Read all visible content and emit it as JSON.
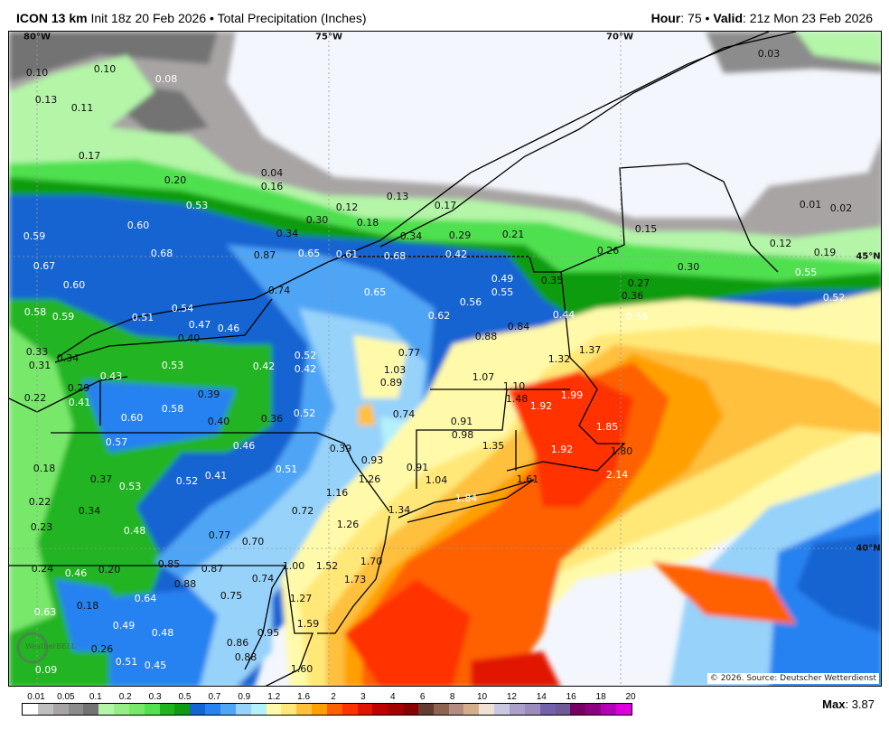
{
  "header": {
    "model": "ICON 13 km",
    "init": "Init 18z 20 Feb 2026",
    "separator": "•",
    "product": "Total Precipitation (Inches)",
    "hour_label": "Hour",
    "hour_value": ": 75",
    "valid_label": "Valid",
    "valid_value": ": 21z Mon 23 Feb 2026"
  },
  "map": {
    "coords": [
      "80°W",
      "75°W",
      "70°W",
      "45°N",
      "40°N"
    ],
    "copyright": "© 2026. Source: Deutscher Wetterdienst",
    "logo": "WeatherBELL",
    "labels": [
      {
        "v": "0.10",
        "t": "dark"
      },
      {
        "v": "0.10",
        "t": "dark"
      },
      {
        "v": "0.08",
        "t": "light"
      },
      {
        "v": "0.13",
        "t": "dark"
      },
      {
        "v": "0.11",
        "t": "dark"
      },
      {
        "v": "0.17",
        "t": "dark"
      },
      {
        "v": "0.20",
        "t": "dark"
      },
      {
        "v": "0.04",
        "t": "dark"
      },
      {
        "v": "0.16",
        "t": "dark"
      },
      {
        "v": "0.53",
        "t": "light"
      },
      {
        "v": "0.60",
        "t": "light"
      },
      {
        "v": "0.59",
        "t": "light"
      },
      {
        "v": "0.68",
        "t": "light"
      },
      {
        "v": "0.87",
        "t": "dark"
      },
      {
        "v": "0.67",
        "t": "light"
      },
      {
        "v": "0.34",
        "t": "dark"
      },
      {
        "v": "0.30",
        "t": "dark"
      },
      {
        "v": "0.12",
        "t": "dark"
      },
      {
        "v": "0.18",
        "t": "dark"
      },
      {
        "v": "0.13",
        "t": "dark"
      },
      {
        "v": "0.17",
        "t": "dark"
      },
      {
        "v": "0.34",
        "t": "dark"
      },
      {
        "v": "0.29",
        "t": "dark"
      },
      {
        "v": "0.21",
        "t": "dark"
      },
      {
        "v": "0.65",
        "t": "light"
      },
      {
        "v": "0.61",
        "t": "light"
      },
      {
        "v": "0.68",
        "t": "light"
      },
      {
        "v": "0.42",
        "t": "light"
      },
      {
        "v": "0.03",
        "t": "dark"
      },
      {
        "v": "0.15",
        "t": "dark"
      },
      {
        "v": "0.26",
        "t": "dark"
      },
      {
        "v": "0.01",
        "t": "dark"
      },
      {
        "v": "0.02",
        "t": "dark"
      },
      {
        "v": "0.12",
        "t": "dark"
      },
      {
        "v": "0.19",
        "t": "dark"
      },
      {
        "v": "0.30",
        "t": "dark"
      },
      {
        "v": "0.27",
        "t": "dark"
      },
      {
        "v": "0.36",
        "t": "dark"
      },
      {
        "v": "0.55",
        "t": "light"
      },
      {
        "v": "0.52",
        "t": "light"
      },
      {
        "v": "0.56",
        "t": "light"
      },
      {
        "v": "0.60",
        "t": "light"
      },
      {
        "v": "0.74",
        "t": "dark"
      },
      {
        "v": "0.65",
        "t": "light"
      },
      {
        "v": "0.49",
        "t": "light"
      },
      {
        "v": "0.55",
        "t": "light"
      },
      {
        "v": "0.35",
        "t": "dark"
      },
      {
        "v": "0.56",
        "t": "light"
      },
      {
        "v": "0.62",
        "t": "light"
      },
      {
        "v": "0.44",
        "t": "light"
      },
      {
        "v": "0.84",
        "t": "dark"
      },
      {
        "v": "0.88",
        "t": "dark"
      },
      {
        "v": "0.58",
        "t": "light"
      },
      {
        "v": "0.59",
        "t": "light"
      },
      {
        "v": "0.51",
        "t": "light"
      },
      {
        "v": "0.54",
        "t": "light"
      },
      {
        "v": "0.47",
        "t": "light"
      },
      {
        "v": "0.46",
        "t": "light"
      },
      {
        "v": "0.40",
        "t": "dark"
      },
      {
        "v": "0.33",
        "t": "dark"
      },
      {
        "v": "0.34",
        "t": "dark"
      },
      {
        "v": "0.31",
        "t": "dark"
      },
      {
        "v": "0.43",
        "t": "light"
      },
      {
        "v": "0.53",
        "t": "light"
      },
      {
        "v": "0.52",
        "t": "light"
      },
      {
        "v": "0.42",
        "t": "light"
      },
      {
        "v": "0.42",
        "t": "light"
      },
      {
        "v": "0.77",
        "t": "dark"
      },
      {
        "v": "1.03",
        "t": "dark"
      },
      {
        "v": "0.89",
        "t": "dark"
      },
      {
        "v": "1.32",
        "t": "dark"
      },
      {
        "v": "1.37",
        "t": "dark"
      },
      {
        "v": "1.07",
        "t": "dark"
      },
      {
        "v": "1.10",
        "t": "dark"
      },
      {
        "v": "1.48",
        "t": "dark"
      },
      {
        "v": "1.92",
        "t": "light"
      },
      {
        "v": "1.99",
        "t": "light"
      },
      {
        "v": "0.29",
        "t": "dark"
      },
      {
        "v": "0.22",
        "t": "dark"
      },
      {
        "v": "0.41",
        "t": "light"
      },
      {
        "v": "0.39",
        "t": "dark"
      },
      {
        "v": "0.58",
        "t": "light"
      },
      {
        "v": "0.60",
        "t": "light"
      },
      {
        "v": "0.40",
        "t": "dark"
      },
      {
        "v": "0.36",
        "t": "dark"
      },
      {
        "v": "0.52",
        "t": "light"
      },
      {
        "v": "0.74",
        "t": "dark"
      },
      {
        "v": "0.91",
        "t": "dark"
      },
      {
        "v": "0.98",
        "t": "dark"
      },
      {
        "v": "1.85",
        "t": "light"
      },
      {
        "v": "1.35",
        "t": "dark"
      },
      {
        "v": "1.92",
        "t": "light"
      },
      {
        "v": "1.80",
        "t": "dark"
      },
      {
        "v": "0.57",
        "t": "light"
      },
      {
        "v": "0.46",
        "t": "light"
      },
      {
        "v": "0.39",
        "t": "dark"
      },
      {
        "v": "0.93",
        "t": "dark"
      },
      {
        "v": "0.91",
        "t": "dark"
      },
      {
        "v": "0.18",
        "t": "dark"
      },
      {
        "v": "0.37",
        "t": "dark"
      },
      {
        "v": "0.53",
        "t": "light"
      },
      {
        "v": "0.52",
        "t": "light"
      },
      {
        "v": "0.41",
        "t": "light"
      },
      {
        "v": "0.51",
        "t": "light"
      },
      {
        "v": "1.16",
        "t": "dark"
      },
      {
        "v": "1.26",
        "t": "dark"
      },
      {
        "v": "1.04",
        "t": "dark"
      },
      {
        "v": "1.61",
        "t": "dark"
      },
      {
        "v": "2.14",
        "t": "light"
      },
      {
        "v": "1.84",
        "t": "light"
      },
      {
        "v": "0.22",
        "t": "dark"
      },
      {
        "v": "0.34",
        "t": "dark"
      },
      {
        "v": "0.72",
        "t": "dark"
      },
      {
        "v": "1.34",
        "t": "dark"
      },
      {
        "v": "0.23",
        "t": "dark"
      },
      {
        "v": "0.48",
        "t": "light"
      },
      {
        "v": "1.26",
        "t": "dark"
      },
      {
        "v": "0.77",
        "t": "dark"
      },
      {
        "v": "0.70",
        "t": "dark"
      },
      {
        "v": "0.24",
        "t": "dark"
      },
      {
        "v": "0.46",
        "t": "light"
      },
      {
        "v": "0.20",
        "t": "dark"
      },
      {
        "v": "0.85",
        "t": "dark"
      },
      {
        "v": "0.87",
        "t": "dark"
      },
      {
        "v": "0.88",
        "t": "dark"
      },
      {
        "v": "0.74",
        "t": "dark"
      },
      {
        "v": "1.00",
        "t": "dark"
      },
      {
        "v": "1.52",
        "t": "dark"
      },
      {
        "v": "1.70",
        "t": "dark"
      },
      {
        "v": "1.73",
        "t": "dark"
      },
      {
        "v": "0.64",
        "t": "light"
      },
      {
        "v": "0.63",
        "t": "light"
      },
      {
        "v": "0.18",
        "t": "dark"
      },
      {
        "v": "0.75",
        "t": "dark"
      },
      {
        "v": "1.27",
        "t": "dark"
      },
      {
        "v": "0.49",
        "t": "light"
      },
      {
        "v": "0.48",
        "t": "light"
      },
      {
        "v": "0.95",
        "t": "dark"
      },
      {
        "v": "1.59",
        "t": "dark"
      },
      {
        "v": "0.26",
        "t": "dark"
      },
      {
        "v": "0.51",
        "t": "light"
      },
      {
        "v": "0.45",
        "t": "light"
      },
      {
        "v": "0.86",
        "t": "dark"
      },
      {
        "v": "0.88",
        "t": "dark"
      },
      {
        "v": "0.09",
        "t": "light"
      },
      {
        "v": "1.60",
        "t": "dark"
      }
    ]
  },
  "legend": {
    "ticks": [
      "0.01",
      "0.05",
      "0.1",
      "0.2",
      "0.3",
      "0.5",
      "0.7",
      "0.9",
      "1.2",
      "1.6",
      "2",
      "3",
      "4",
      "6",
      "8",
      "10",
      "12",
      "14",
      "16",
      "18",
      "20"
    ],
    "colors": [
      "#ffffff",
      "#bfbfbf",
      "#a8a4a4",
      "#8c8c8c",
      "#737373",
      "#b4f5a8",
      "#96ee86",
      "#78e86a",
      "#50e050",
      "#20b420",
      "#109c10",
      "#1464d2",
      "#2882f0",
      "#50a5f5",
      "#96d2fa",
      "#b4f0fa",
      "#fffaaa",
      "#ffe878",
      "#ffc03c",
      "#ffa000",
      "#ff6000",
      "#ff3200",
      "#e11400",
      "#c00000",
      "#a50000",
      "#870000",
      "#643b32",
      "#8c6450",
      "#b48c82",
      "#d2af8c",
      "#f0e1d7",
      "#c8c8e1",
      "#aaa0c8",
      "#9b8cbe",
      "#7361aa",
      "#6e5a96",
      "#780064",
      "#8c0082",
      "#b400b4",
      "#dc00dc"
    ],
    "max_label": "Max",
    "max_value": ": 3.87"
  }
}
